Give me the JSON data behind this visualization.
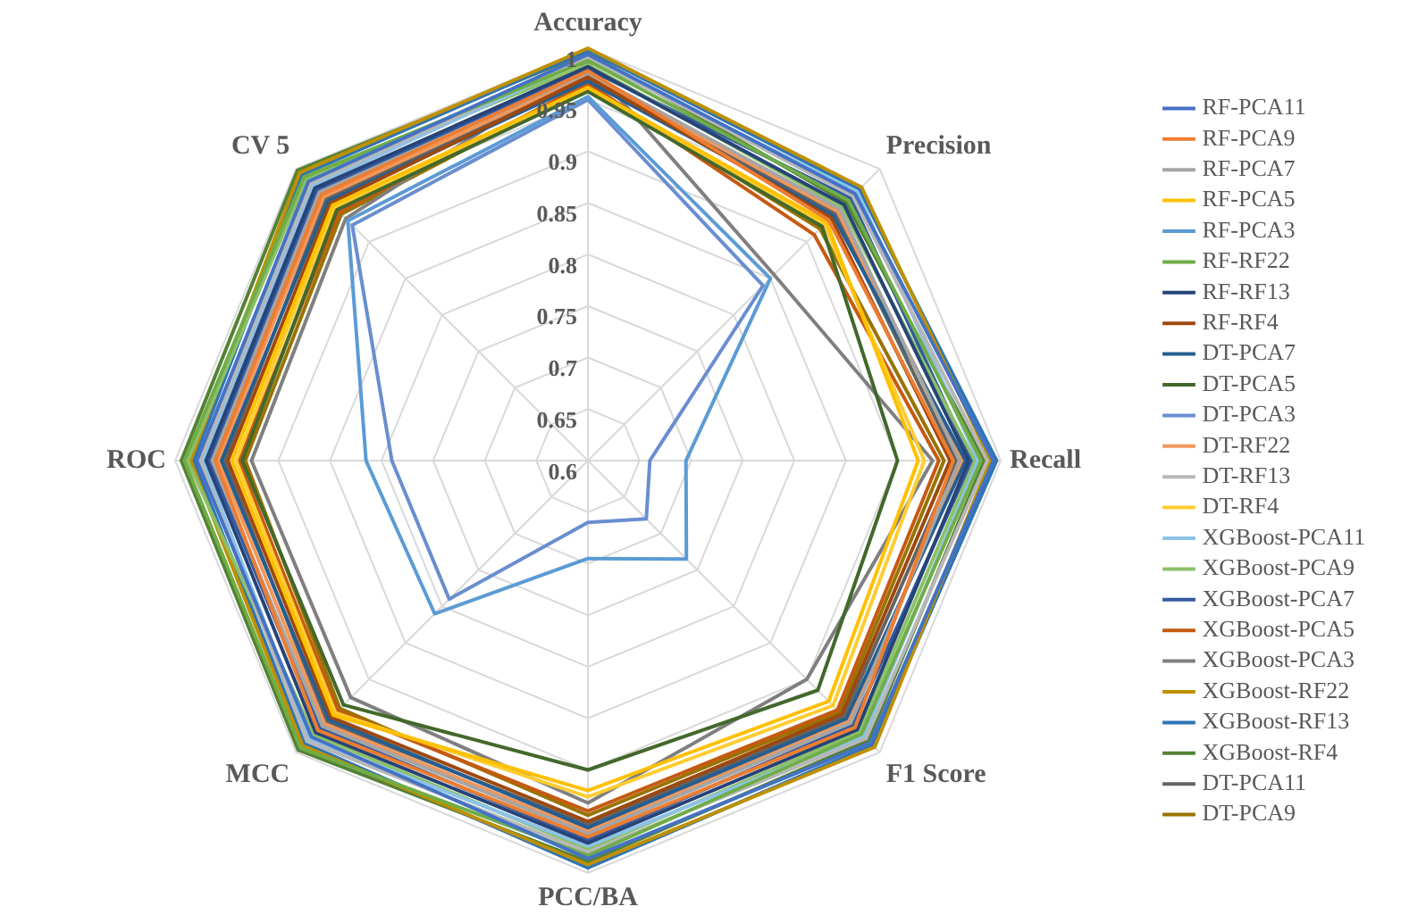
{
  "chart_data": {
    "type": "radar",
    "categories": [
      "Accuracy",
      "Precision",
      "Recall",
      "F1 Score",
      "PCC/BA",
      "MCC",
      "ROC",
      "CV 5"
    ],
    "ylim": [
      0.6,
      1
    ],
    "yticks": [
      0.6,
      0.65,
      0.7,
      0.75,
      0.8,
      0.85,
      0.9,
      0.95,
      1
    ],
    "grid": true,
    "legend": "right",
    "marker": "none",
    "series": [
      {
        "name": "RF-PCA11",
        "color": "#4472c4",
        "values": [
          0.994,
          0.966,
          0.993,
          0.987,
          0.986,
          0.979,
          0.979,
          0.983
        ]
      },
      {
        "name": "RF-PCA9",
        "color": "#ed7d31",
        "values": [
          0.978,
          0.93,
          0.954,
          0.966,
          0.965,
          0.97,
          0.961,
          0.965
        ]
      },
      {
        "name": "RF-PCA7",
        "color": "#a5a5a5",
        "values": [
          0.976,
          0.945,
          0.96,
          0.96,
          0.962,
          0.964,
          0.964,
          0.968
        ]
      },
      {
        "name": "RF-PCA5",
        "color": "#ffc000",
        "values": [
          0.962,
          0.927,
          0.92,
          0.93,
          0.92,
          0.949,
          0.945,
          0.95
        ]
      },
      {
        "name": "RF-PCA3",
        "color": "#5b9bd5",
        "values": [
          0.953,
          0.85,
          0.695,
          0.735,
          0.695,
          0.81,
          0.815,
          0.929
        ]
      },
      {
        "name": "RF-RF22",
        "color": "#70ad47",
        "values": [
          0.988,
          0.957,
          0.981,
          0.975,
          0.983,
          0.994,
          0.991,
          0.989
        ]
      },
      {
        "name": "RF-RF13",
        "color": "#264478",
        "values": [
          0.982,
          0.951,
          0.969,
          0.969,
          0.971,
          0.973,
          0.97,
          0.974
        ]
      },
      {
        "name": "RF-RF4",
        "color": "#9e480e",
        "values": [
          0.972,
          0.933,
          0.951,
          0.948,
          0.95,
          0.952,
          0.949,
          0.953
        ]
      },
      {
        "name": "DT-PCA7",
        "color": "#255e91",
        "values": [
          0.968,
          0.936,
          0.966,
          0.954,
          0.956,
          0.955,
          0.955,
          0.956
        ]
      },
      {
        "name": "DT-PCA5",
        "color": "#43682b",
        "values": [
          0.958,
          0.921,
          0.9,
          0.915,
          0.9,
          0.935,
          0.935,
          0.944
        ]
      },
      {
        "name": "DT-PCA3",
        "color": "#698ed0",
        "values": [
          0.95,
          0.84,
          0.66,
          0.68,
          0.66,
          0.79,
          0.79,
          0.923
        ]
      },
      {
        "name": "DT-RF22",
        "color": "#f1975a",
        "values": [
          0.974,
          0.942,
          0.963,
          0.957,
          0.959,
          0.961,
          0.958,
          0.962
        ]
      },
      {
        "name": "DT-RF13",
        "color": "#b7b7b7",
        "values": [
          0.992,
          0.963,
          0.987,
          0.981,
          0.98,
          0.985,
          0.976,
          0.98
        ]
      },
      {
        "name": "DT-RF4",
        "color": "#ffcd33",
        "values": [
          0.96,
          0.924,
          0.926,
          0.936,
          0.926,
          0.946,
          0.941,
          0.947
        ]
      },
      {
        "name": "XGBoost-PCA11",
        "color": "#8cc2e8",
        "values": [
          0.99,
          0.969,
          0.978,
          0.978,
          0.974,
          0.982,
          0.973,
          0.977
        ]
      },
      {
        "name": "XGBoost-PCA9",
        "color": "#8cc168",
        "values": [
          0.984,
          0.948,
          0.975,
          0.972,
          0.977,
          0.976,
          0.988,
          0.986
        ]
      },
      {
        "name": "XGBoost-PCA7",
        "color": "#335aa1",
        "values": [
          0.98,
          0.96,
          0.972,
          0.963,
          0.968,
          0.967,
          0.967,
          0.971
        ]
      },
      {
        "name": "XGBoost-PCA5",
        "color": "#c55a11",
        "values": [
          0.966,
          0.91,
          0.94,
          0.942,
          0.94,
          0.943,
          0.938,
          0.941
        ]
      },
      {
        "name": "XGBoost-PCA3",
        "color": "#7f7f7f",
        "values": [
          0.986,
          0.855,
          0.934,
          0.9,
          0.932,
          0.925,
          0.926,
          0.932
        ]
      },
      {
        "name": "XGBoost-RF22",
        "color": "#bf9000",
        "values": [
          1,
          0.975,
          0.99,
          0.993,
          0.992,
          0.991,
          0.985,
          0.995
        ]
      },
      {
        "name": "XGBoost-RF13",
        "color": "#2e75b6",
        "values": [
          0.998,
          0.972,
          0.996,
          0.99,
          0.995,
          0.988,
          0.982,
          0.992
        ]
      },
      {
        "name": "XGBoost-RF4",
        "color": "#548235",
        "values": [
          0.996,
          0.954,
          0.984,
          0.984,
          0.989,
          0.997,
          0.994,
          0.998
        ]
      },
      {
        "name": "DT-PCA11",
        "color": "#636363",
        "values": [
          0.97,
          0.939,
          0.957,
          0.951,
          0.953,
          0.958,
          0.952,
          0.959
        ]
      },
      {
        "name": "DT-PCA9",
        "color": "#997300",
        "values": [
          0.964,
          0.918,
          0.945,
          0.945,
          0.944,
          0.94,
          0.932,
          0.938
        ]
      }
    ]
  }
}
